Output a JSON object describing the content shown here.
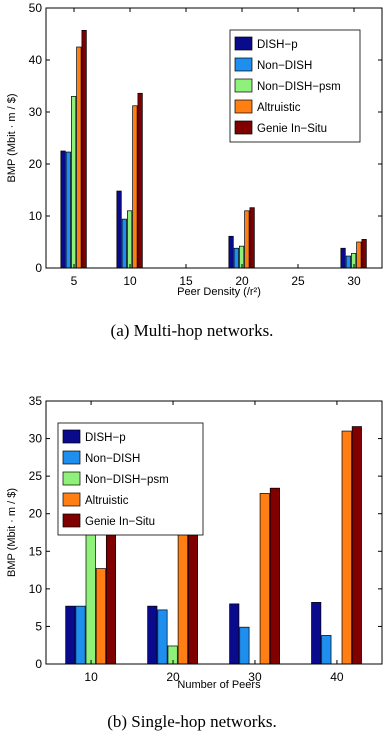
{
  "colors": {
    "DISH-p": "#0a0a8c",
    "Non-DISH": "#1f8fef",
    "Non-DISH-psm": "#8ff07a",
    "Altruistic": "#ff7f14",
    "Genie In-Situ": "#800000"
  },
  "chart_data": [
    {
      "type": "bar",
      "caption": "(a) Multi-hop networks.",
      "xlabel": "Peer Density (/r²)",
      "ylabel": "BMP (Mbit · m / $)",
      "categories": [
        5,
        10,
        20,
        30
      ],
      "x_ticks": [
        "5",
        "10",
        "15",
        "20",
        "25",
        "30"
      ],
      "xlim": [
        2.5,
        32.5
      ],
      "ylim": [
        0,
        50
      ],
      "y_ticks": [
        "0",
        "10",
        "20",
        "30",
        "40",
        "50"
      ],
      "legend_position": "top-right",
      "series": [
        {
          "name": "DISH−p",
          "values": [
            22.5,
            14.8,
            6.1,
            3.8
          ]
        },
        {
          "name": "Non−DISH",
          "values": [
            22.3,
            9.4,
            3.8,
            2.3
          ]
        },
        {
          "name": "Non−DISH−psm",
          "values": [
            33.0,
            11.0,
            4.2,
            2.8
          ]
        },
        {
          "name": "Altruistic",
          "values": [
            42.5,
            31.2,
            11.0,
            5.0
          ]
        },
        {
          "name": "Genie In−Situ",
          "values": [
            45.7,
            33.6,
            11.6,
            5.5
          ]
        }
      ]
    },
    {
      "type": "bar",
      "caption": "(b) Single-hop networks.",
      "xlabel": "Number of Peers",
      "ylabel": "BMP (Mbit · m / $)",
      "categories": [
        10,
        20,
        30,
        40
      ],
      "x_ticks": [
        "10",
        "20",
        "30",
        "40"
      ],
      "xlim": [
        4.5,
        45.5
      ],
      "ylim": [
        0,
        35
      ],
      "y_ticks": [
        "0",
        "5",
        "10",
        "15",
        "20",
        "25",
        "30",
        "35"
      ],
      "legend_position": "top-left",
      "series": [
        {
          "name": "DISH−p",
          "values": [
            7.7,
            7.7,
            8.0,
            8.2
          ]
        },
        {
          "name": "Non−DISH",
          "values": [
            7.7,
            7.2,
            4.9,
            3.8
          ]
        },
        {
          "name": "Non−DISH−psm",
          "values": [
            17.7,
            2.4,
            0,
            0
          ]
        },
        {
          "name": "Altruistic",
          "values": [
            12.7,
            17.3,
            22.7,
            31.0
          ]
        },
        {
          "name": "Genie In−Situ",
          "values": [
            18.0,
            18.2,
            23.4,
            31.6
          ]
        }
      ]
    }
  ]
}
